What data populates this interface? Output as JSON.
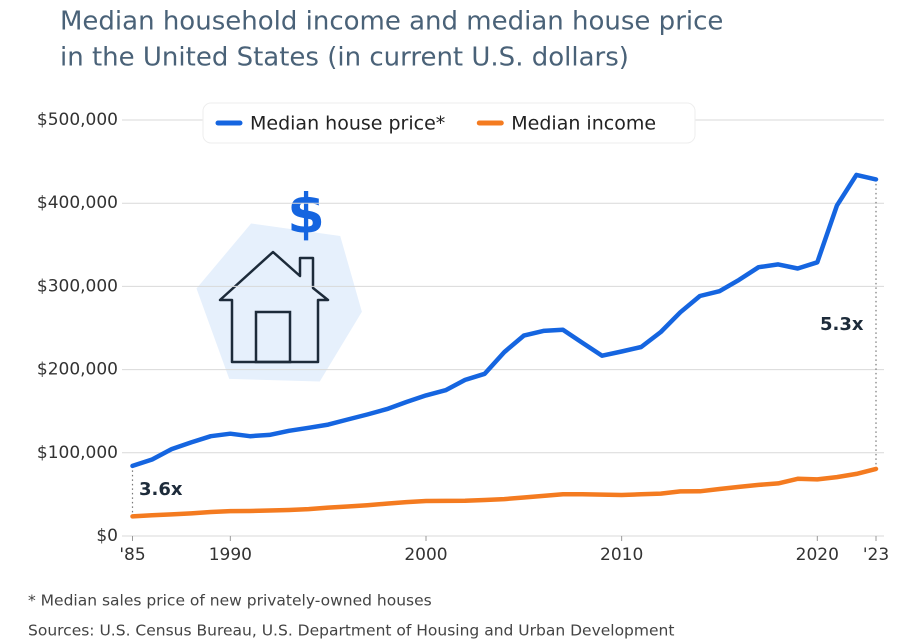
{
  "chart_data": {
    "type": "line",
    "title": [
      "Median household income and median house price",
      "in the United States (in current U.S. dollars)"
    ],
    "x": [
      1985,
      1986,
      1987,
      1988,
      1989,
      1990,
      1991,
      1992,
      1993,
      1994,
      1995,
      1996,
      1997,
      1998,
      1999,
      2000,
      2001,
      2002,
      2003,
      2004,
      2005,
      2006,
      2007,
      2008,
      2009,
      2010,
      2011,
      2012,
      2013,
      2014,
      2015,
      2016,
      2017,
      2018,
      2019,
      2020,
      2021,
      2022,
      2023
    ],
    "series": [
      {
        "name": "Median house price*",
        "color": "#1565e0",
        "values": [
          84300,
          92000,
          104500,
          112500,
          120000,
          122900,
          120000,
          121500,
          126500,
          130000,
          133900,
          140000,
          146000,
          152500,
          161000,
          169000,
          175200,
          187600,
          195000,
          221000,
          240900,
          246500,
          247900,
          232100,
          216700,
          221800,
          227200,
          245200,
          268900,
          288500,
          294200,
          307800,
          323100,
          326400,
          321500,
          329000,
          397100,
          434000,
          428600
        ]
      },
      {
        "name": "Median income",
        "color": "#f47b20",
        "values": [
          23600,
          24900,
          26000,
          27200,
          28900,
          29900,
          30100,
          30600,
          31200,
          32300,
          34100,
          35500,
          37000,
          38900,
          40700,
          42100,
          42200,
          42400,
          43300,
          44300,
          46300,
          48200,
          50200,
          50300,
          49800,
          49300,
          50100,
          51000,
          53600,
          53700,
          56500,
          59000,
          61400,
          63200,
          68700,
          68000,
          70800,
          74600,
          80600
        ]
      }
    ],
    "xlim": [
      1985,
      2023
    ],
    "xticks": [
      {
        "value": 1985,
        "label": "'85"
      },
      1990,
      2000,
      2010,
      2020,
      {
        "value": 2023,
        "label": "'23"
      }
    ],
    "ylim": [
      0,
      500000
    ],
    "yticks": [
      {
        "value": 0,
        "label": "$0"
      },
      {
        "value": 100000,
        "label": "$100,000"
      },
      {
        "value": 200000,
        "label": "$200,000"
      },
      {
        "value": 300000,
        "label": "$300,000"
      },
      {
        "value": 400000,
        "label": "$400,000"
      },
      {
        "value": 500000,
        "label": "$500,000"
      }
    ],
    "grid": true,
    "annotations": [
      "3.6x",
      "5.3x"
    ],
    "footnote": "* Median sales price of new privately-owned houses",
    "source": "Sources: U.S. Census Bureau, U.S. Department of Housing and Urban Development"
  }
}
